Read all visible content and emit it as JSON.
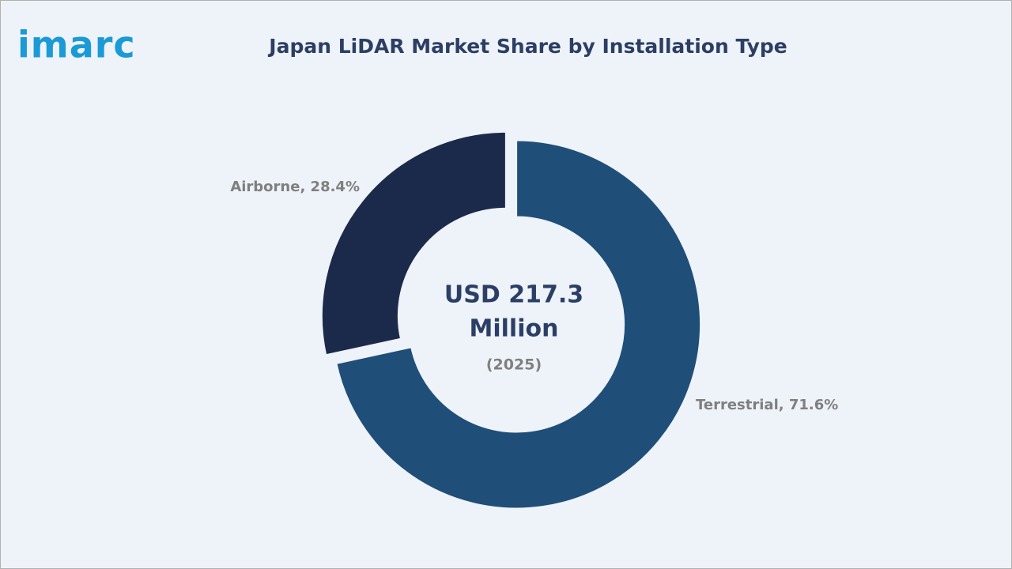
{
  "logo": "imarc",
  "chart_data": {
    "type": "donut",
    "title": "Japan LiDAR Market Share by Installation Type",
    "values": [
      71.6,
      28.4
    ],
    "value_labels": [
      "Terrestrial, 71.6%",
      "Airborne, 28.4%"
    ],
    "colors": [
      "#1f4e79",
      "#1b2a4a"
    ],
    "center_text": [
      "USD 217.3",
      "Million",
      "(2025)"
    ]
  }
}
